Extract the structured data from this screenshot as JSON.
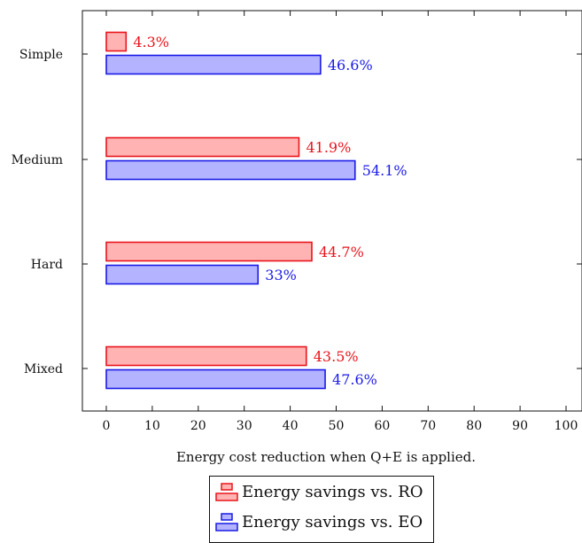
{
  "chart_data": {
    "type": "bar",
    "orientation": "horizontal",
    "categories": [
      "Simple",
      "Medium",
      "Hard",
      "Mixed"
    ],
    "series": [
      {
        "name": "Energy savings vs. RO",
        "values": [
          4.3,
          41.9,
          44.7,
          43.5
        ],
        "labels": [
          "4.3%",
          "41.9%",
          "44.7%",
          "43.5%"
        ],
        "fill": "#ffb3b3",
        "stroke": "#e8141b"
      },
      {
        "name": "Energy savings vs. EO",
        "values": [
          46.6,
          54.1,
          33,
          47.6
        ],
        "labels": [
          "46.6%",
          "54.1%",
          "33%",
          "47.6%"
        ],
        "fill": "#b3b3ff",
        "stroke": "#1a1ae6"
      }
    ],
    "xlabel": "Energy cost reduction when Q+E is applied.",
    "xlim": [
      0,
      100
    ],
    "xticks": [
      0,
      10,
      20,
      30,
      40,
      50,
      60,
      70,
      80,
      90,
      100
    ],
    "grid": false,
    "legend_position": "bottom-center"
  }
}
